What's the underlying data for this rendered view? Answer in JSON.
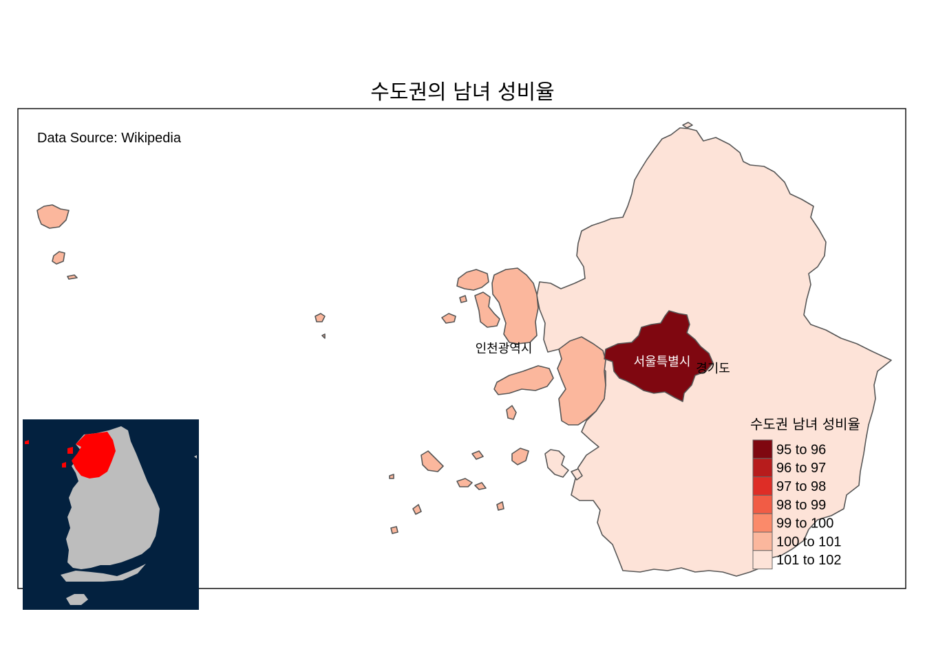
{
  "title": "수도권의 남녀 성비율",
  "source_note": "Data Source: Wikipedia",
  "regions": {
    "seoul": {
      "label": "서울특별시",
      "ratio_bin": "95 to 96",
      "color": "#7f0710"
    },
    "incheon": {
      "label": "인천광역시",
      "ratio_bin": "100 to 101",
      "color": "#fbb79d"
    },
    "gyeonggi": {
      "label": "경기도",
      "ratio_bin": "101 to 102",
      "color": "#fde3d8"
    }
  },
  "legend": {
    "title": "수도권 남녀 성비율",
    "items": [
      {
        "label": "95 to 96",
        "color": "#7f0710"
      },
      {
        "label": "96 to 97",
        "color": "#b71c1c"
      },
      {
        "label": "97 to 98",
        "color": "#de2d26"
      },
      {
        "label": "98 to 99",
        "color": "#f15c45"
      },
      {
        "label": "99 to 100",
        "color": "#fb8a6a"
      },
      {
        "label": "100 to 101",
        "color": "#fbb79d"
      },
      {
        "label": "101 to 102",
        "color": "#fde3d8"
      }
    ]
  },
  "inset": {
    "background": "#03213f",
    "land_color": "#bdbdbd",
    "highlight_color": "#ff0000"
  }
}
